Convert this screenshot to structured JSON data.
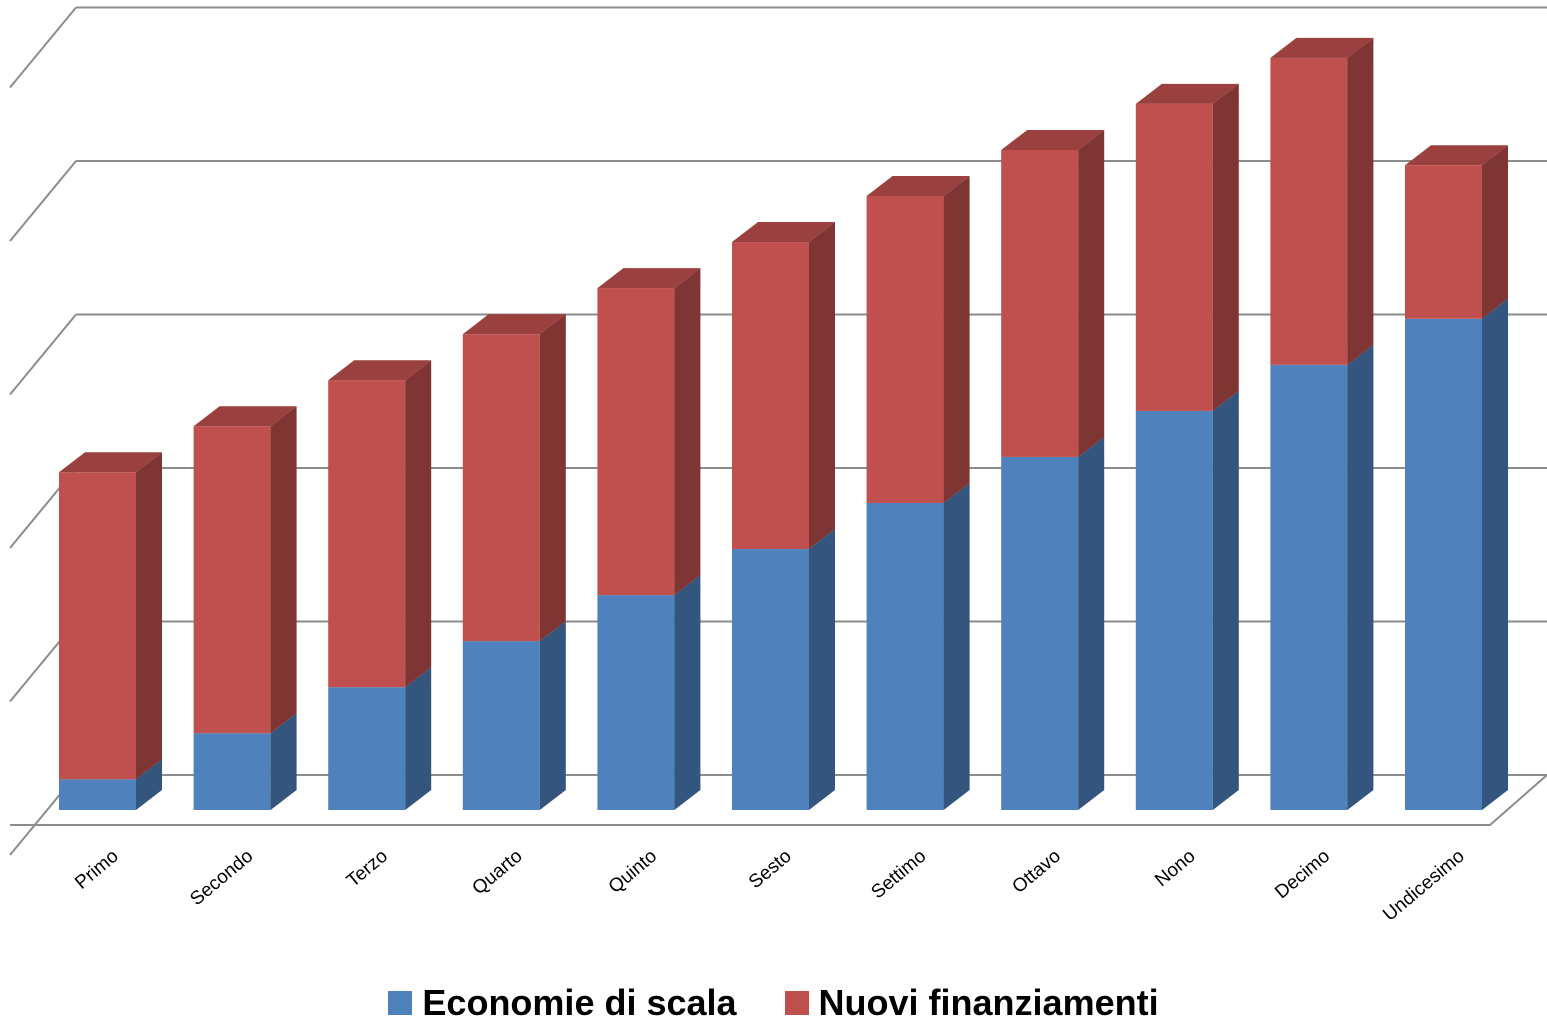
{
  "chart_data": {
    "type": "bar",
    "stacked": true,
    "style": "3d",
    "categories": [
      "Primo",
      "Secondo",
      "Terzo",
      "Quarto",
      "Quinto",
      "Sesto",
      "Settimo",
      "Ottavo",
      "Nono",
      "Decimo",
      "Undicesimo"
    ],
    "series": [
      {
        "name": "Economie di scala",
        "color": "#4F81BD",
        "values": [
          0.2,
          0.5,
          0.8,
          1.1,
          1.4,
          1.7,
          2.0,
          2.3,
          2.6,
          2.9,
          3.2
        ]
      },
      {
        "name": "Nuovi finanziamenti",
        "color": "#C0504D",
        "values": [
          2.0,
          2.0,
          2.0,
          2.0,
          2.0,
          2.0,
          2.0,
          2.0,
          2.0,
          2.0,
          1.0
        ]
      }
    ],
    "ylim": [
      0,
      5
    ],
    "grid": true,
    "legend_position": "bottom"
  }
}
